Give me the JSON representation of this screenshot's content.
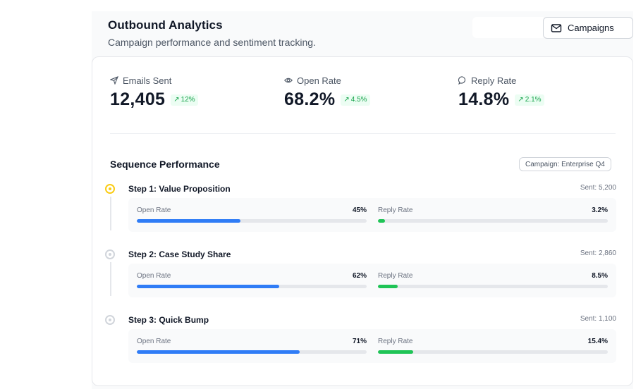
{
  "header": {
    "title": "Outbound Analytics",
    "subtitle": "Campaign performance and sentiment tracking.",
    "campaigns_button": {
      "label": "Campaigns",
      "icon": "mail-icon"
    }
  },
  "metrics": [
    {
      "label": "Emails Sent",
      "icon": "send-icon",
      "value": "12,405",
      "trend": "12%",
      "trend_direction": "up"
    },
    {
      "label": "Open Rate",
      "icon": "eye-icon",
      "value": "68.2%",
      "trend": "4.5%",
      "trend_direction": "up"
    },
    {
      "label": "Reply Rate",
      "icon": "chat-bubble-icon",
      "value": "14.8%",
      "trend": "2.1%",
      "trend_direction": "up"
    }
  ],
  "sequence": {
    "title": "Sequence Performance",
    "campaign_tag": "Campaign: Enterprise Q4",
    "steps": [
      {
        "name": "Step 1: Value Proposition",
        "sent": "Sent: 5,200",
        "active": true,
        "open": {
          "label": "Open Rate",
          "value": "45%",
          "fraction": 0.45
        },
        "reply": {
          "label": "Reply Rate",
          "value": "3.2%",
          "fraction": 0.032
        }
      },
      {
        "name": "Step 2: Case Study Share",
        "sent": "Sent: 2,860",
        "active": false,
        "open": {
          "label": "Open Rate",
          "value": "62%",
          "fraction": 0.62
        },
        "reply": {
          "label": "Reply Rate",
          "value": "8.5%",
          "fraction": 0.085
        }
      },
      {
        "name": "Step 3: Quick Bump",
        "sent": "Sent: 1,100",
        "active": false,
        "open": {
          "label": "Open Rate",
          "value": "71%",
          "fraction": 0.71
        },
        "reply": {
          "label": "Reply Rate",
          "value": "15.4%",
          "fraction": 0.154
        }
      }
    ]
  },
  "colors": {
    "open_bar": "#2f7cf6",
    "reply_bar": "#1fc456",
    "trend_up": "#16a34a",
    "active_step": "#facc15"
  }
}
